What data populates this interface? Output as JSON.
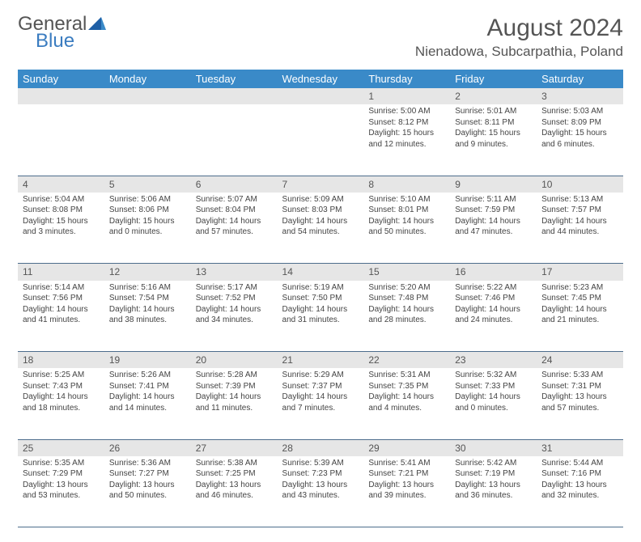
{
  "brand": {
    "general": "General",
    "blue": "Blue"
  },
  "title": "August 2024",
  "location": "Nienadowa, Subcarpathia, Poland",
  "colors": {
    "header_bg": "#3a8ac8",
    "daynum_bg": "#e6e6e6",
    "row_border": "#4d6d8c",
    "text": "#444444",
    "title_text": "#555555",
    "logo_blue": "#3a7cc0"
  },
  "weekdays": [
    "Sunday",
    "Monday",
    "Tuesday",
    "Wednesday",
    "Thursday",
    "Friday",
    "Saturday"
  ],
  "weeks": [
    {
      "nums": [
        "",
        "",
        "",
        "",
        "1",
        "2",
        "3"
      ],
      "cells": [
        null,
        null,
        null,
        null,
        {
          "sunrise": "Sunrise: 5:00 AM",
          "sunset": "Sunset: 8:12 PM",
          "day1": "Daylight: 15 hours",
          "day2": "and 12 minutes."
        },
        {
          "sunrise": "Sunrise: 5:01 AM",
          "sunset": "Sunset: 8:11 PM",
          "day1": "Daylight: 15 hours",
          "day2": "and 9 minutes."
        },
        {
          "sunrise": "Sunrise: 5:03 AM",
          "sunset": "Sunset: 8:09 PM",
          "day1": "Daylight: 15 hours",
          "day2": "and 6 minutes."
        }
      ]
    },
    {
      "nums": [
        "4",
        "5",
        "6",
        "7",
        "8",
        "9",
        "10"
      ],
      "cells": [
        {
          "sunrise": "Sunrise: 5:04 AM",
          "sunset": "Sunset: 8:08 PM",
          "day1": "Daylight: 15 hours",
          "day2": "and 3 minutes."
        },
        {
          "sunrise": "Sunrise: 5:06 AM",
          "sunset": "Sunset: 8:06 PM",
          "day1": "Daylight: 15 hours",
          "day2": "and 0 minutes."
        },
        {
          "sunrise": "Sunrise: 5:07 AM",
          "sunset": "Sunset: 8:04 PM",
          "day1": "Daylight: 14 hours",
          "day2": "and 57 minutes."
        },
        {
          "sunrise": "Sunrise: 5:09 AM",
          "sunset": "Sunset: 8:03 PM",
          "day1": "Daylight: 14 hours",
          "day2": "and 54 minutes."
        },
        {
          "sunrise": "Sunrise: 5:10 AM",
          "sunset": "Sunset: 8:01 PM",
          "day1": "Daylight: 14 hours",
          "day2": "and 50 minutes."
        },
        {
          "sunrise": "Sunrise: 5:11 AM",
          "sunset": "Sunset: 7:59 PM",
          "day1": "Daylight: 14 hours",
          "day2": "and 47 minutes."
        },
        {
          "sunrise": "Sunrise: 5:13 AM",
          "sunset": "Sunset: 7:57 PM",
          "day1": "Daylight: 14 hours",
          "day2": "and 44 minutes."
        }
      ]
    },
    {
      "nums": [
        "11",
        "12",
        "13",
        "14",
        "15",
        "16",
        "17"
      ],
      "cells": [
        {
          "sunrise": "Sunrise: 5:14 AM",
          "sunset": "Sunset: 7:56 PM",
          "day1": "Daylight: 14 hours",
          "day2": "and 41 minutes."
        },
        {
          "sunrise": "Sunrise: 5:16 AM",
          "sunset": "Sunset: 7:54 PM",
          "day1": "Daylight: 14 hours",
          "day2": "and 38 minutes."
        },
        {
          "sunrise": "Sunrise: 5:17 AM",
          "sunset": "Sunset: 7:52 PM",
          "day1": "Daylight: 14 hours",
          "day2": "and 34 minutes."
        },
        {
          "sunrise": "Sunrise: 5:19 AM",
          "sunset": "Sunset: 7:50 PM",
          "day1": "Daylight: 14 hours",
          "day2": "and 31 minutes."
        },
        {
          "sunrise": "Sunrise: 5:20 AM",
          "sunset": "Sunset: 7:48 PM",
          "day1": "Daylight: 14 hours",
          "day2": "and 28 minutes."
        },
        {
          "sunrise": "Sunrise: 5:22 AM",
          "sunset": "Sunset: 7:46 PM",
          "day1": "Daylight: 14 hours",
          "day2": "and 24 minutes."
        },
        {
          "sunrise": "Sunrise: 5:23 AM",
          "sunset": "Sunset: 7:45 PM",
          "day1": "Daylight: 14 hours",
          "day2": "and 21 minutes."
        }
      ]
    },
    {
      "nums": [
        "18",
        "19",
        "20",
        "21",
        "22",
        "23",
        "24"
      ],
      "cells": [
        {
          "sunrise": "Sunrise: 5:25 AM",
          "sunset": "Sunset: 7:43 PM",
          "day1": "Daylight: 14 hours",
          "day2": "and 18 minutes."
        },
        {
          "sunrise": "Sunrise: 5:26 AM",
          "sunset": "Sunset: 7:41 PM",
          "day1": "Daylight: 14 hours",
          "day2": "and 14 minutes."
        },
        {
          "sunrise": "Sunrise: 5:28 AM",
          "sunset": "Sunset: 7:39 PM",
          "day1": "Daylight: 14 hours",
          "day2": "and 11 minutes."
        },
        {
          "sunrise": "Sunrise: 5:29 AM",
          "sunset": "Sunset: 7:37 PM",
          "day1": "Daylight: 14 hours",
          "day2": "and 7 minutes."
        },
        {
          "sunrise": "Sunrise: 5:31 AM",
          "sunset": "Sunset: 7:35 PM",
          "day1": "Daylight: 14 hours",
          "day2": "and 4 minutes."
        },
        {
          "sunrise": "Sunrise: 5:32 AM",
          "sunset": "Sunset: 7:33 PM",
          "day1": "Daylight: 14 hours",
          "day2": "and 0 minutes."
        },
        {
          "sunrise": "Sunrise: 5:33 AM",
          "sunset": "Sunset: 7:31 PM",
          "day1": "Daylight: 13 hours",
          "day2": "and 57 minutes."
        }
      ]
    },
    {
      "nums": [
        "25",
        "26",
        "27",
        "28",
        "29",
        "30",
        "31"
      ],
      "cells": [
        {
          "sunrise": "Sunrise: 5:35 AM",
          "sunset": "Sunset: 7:29 PM",
          "day1": "Daylight: 13 hours",
          "day2": "and 53 minutes."
        },
        {
          "sunrise": "Sunrise: 5:36 AM",
          "sunset": "Sunset: 7:27 PM",
          "day1": "Daylight: 13 hours",
          "day2": "and 50 minutes."
        },
        {
          "sunrise": "Sunrise: 5:38 AM",
          "sunset": "Sunset: 7:25 PM",
          "day1": "Daylight: 13 hours",
          "day2": "and 46 minutes."
        },
        {
          "sunrise": "Sunrise: 5:39 AM",
          "sunset": "Sunset: 7:23 PM",
          "day1": "Daylight: 13 hours",
          "day2": "and 43 minutes."
        },
        {
          "sunrise": "Sunrise: 5:41 AM",
          "sunset": "Sunset: 7:21 PM",
          "day1": "Daylight: 13 hours",
          "day2": "and 39 minutes."
        },
        {
          "sunrise": "Sunrise: 5:42 AM",
          "sunset": "Sunset: 7:19 PM",
          "day1": "Daylight: 13 hours",
          "day2": "and 36 minutes."
        },
        {
          "sunrise": "Sunrise: 5:44 AM",
          "sunset": "Sunset: 7:16 PM",
          "day1": "Daylight: 13 hours",
          "day2": "and 32 minutes."
        }
      ]
    }
  ]
}
